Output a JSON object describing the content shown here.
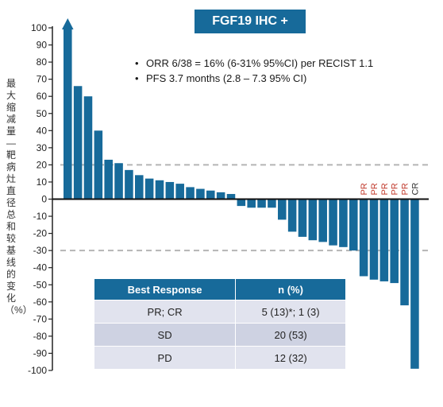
{
  "chart_data": {
    "type": "bar",
    "title": "FGF19 IHC +",
    "ylabel": "最大缩减量—靶病灶直径总和较基线的变化（%）",
    "ylim": [
      -100,
      100
    ],
    "yticks": [
      100,
      90,
      80,
      70,
      60,
      50,
      40,
      30,
      20,
      10,
      0,
      -10,
      -20,
      -30,
      -40,
      -50,
      -60,
      -70,
      -80,
      -90,
      -100
    ],
    "reference_lines": [
      20,
      -30
    ],
    "values": [
      100,
      66,
      60,
      40,
      23,
      21,
      17,
      14,
      12,
      11,
      10,
      9,
      7,
      6,
      5,
      4,
      3,
      -4,
      -5,
      -5,
      -5,
      -12,
      -19,
      -22,
      -24,
      -25,
      -27,
      -28,
      -30,
      -45,
      -47,
      -48,
      -49,
      -62,
      -99
    ],
    "overflow_arrow_index": 0,
    "bar_labels": [
      {
        "index": 29,
        "text": "PR",
        "color": "#c0392b"
      },
      {
        "index": 30,
        "text": "PR",
        "color": "#c0392b"
      },
      {
        "index": 31,
        "text": "PR",
        "color": "#c0392b"
      },
      {
        "index": 32,
        "text": "PR",
        "color": "#c0392b"
      },
      {
        "index": 33,
        "text": "PR",
        "color": "#c0392b"
      },
      {
        "index": 34,
        "text": "CR",
        "color": "#333333"
      }
    ],
    "bar_color": "#176a9a",
    "grid": false
  },
  "annotations": [
    "ORR 6/38 = 16% (6-31% 95%CI) per RECIST 1.1",
    "PFS 3.7 months (2.8 – 7.3 95% CI)"
  ],
  "table": {
    "headers": [
      "Best Response",
      "n (%)"
    ],
    "rows": [
      [
        "PR; CR",
        "5 (13)*; 1 (3)"
      ],
      [
        "SD",
        "20 (53)"
      ],
      [
        "PD",
        "12 (32)"
      ]
    ]
  }
}
